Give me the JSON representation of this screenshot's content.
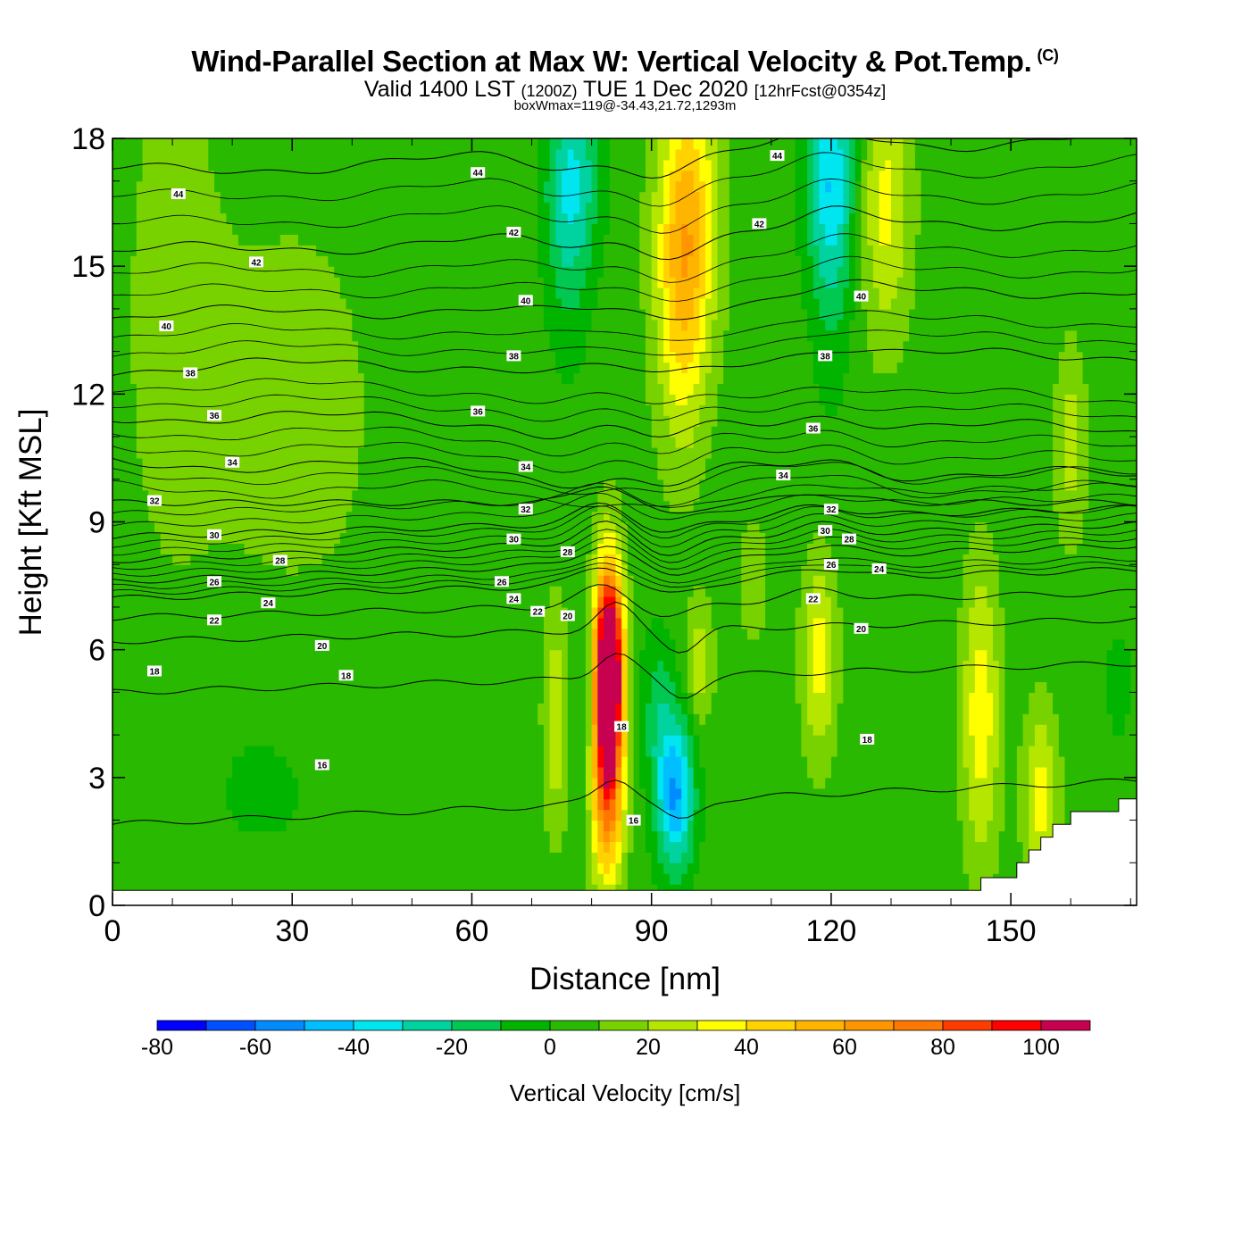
{
  "chart_data": {
    "type": "heatmap",
    "title": "Wind-Parallel Section at Max W: Vertical Velocity & Pot.Temp.",
    "copyright_mark": "(C)",
    "valid_prefix": "Valid 1400 LST",
    "valid_utc": "(1200Z)",
    "valid_date": "TUE 1 Dec 2020",
    "forecast": "[12hrFcst@0354z]",
    "box_info": "boxWmax=119@-34.43,21.72,1293m",
    "xlabel": "Distance [nm]",
    "ylabel": "Height [Kft MSL]",
    "xlim": [
      0,
      171
    ],
    "ylim": [
      0,
      18
    ],
    "x_ticks": [
      "0",
      "30",
      "60",
      "90",
      "120",
      "150"
    ],
    "x_tick_values": [
      0,
      30,
      60,
      90,
      120,
      150
    ],
    "y_ticks": [
      "0",
      "3",
      "6",
      "9",
      "12",
      "15",
      "18"
    ],
    "y_tick_values": [
      0,
      3,
      6,
      9,
      12,
      15,
      18
    ],
    "background_w": 5,
    "w_features": [
      {
        "x": 83,
        "y": 5.6,
        "sx": 1.6,
        "sy": 1.6,
        "w": 110
      },
      {
        "x": 82.5,
        "y": 4.0,
        "sx": 1.8,
        "sy": 2.4,
        "w": 60
      },
      {
        "x": 83,
        "y": 2.4,
        "sx": 2.0,
        "sy": 1.2,
        "w": 20
      },
      {
        "x": 94,
        "y": 2.6,
        "sx": 2.2,
        "sy": 1.3,
        "w": -55
      },
      {
        "x": 91,
        "y": 4.6,
        "sx": 2.0,
        "sy": 1.4,
        "w": -18
      },
      {
        "x": 79,
        "y": 5.0,
        "sx": 1.0,
        "sy": 1.4,
        "w": -12
      },
      {
        "x": 74,
        "y": 4.4,
        "sx": 1.4,
        "sy": 1.8,
        "w": 25
      },
      {
        "x": 96,
        "y": 16.2,
        "sx": 3.5,
        "sy": 2.2,
        "w": 45
      },
      {
        "x": 95,
        "y": 13.2,
        "sx": 3.0,
        "sy": 2.2,
        "w": 25
      },
      {
        "x": 77,
        "y": 17.2,
        "sx": 3.2,
        "sy": 1.5,
        "w": -32
      },
      {
        "x": 76,
        "y": 15.0,
        "sx": 2.6,
        "sy": 1.8,
        "w": -15
      },
      {
        "x": 120,
        "y": 17.2,
        "sx": 3.0,
        "sy": 1.8,
        "w": -40
      },
      {
        "x": 120,
        "y": 14.5,
        "sx": 2.4,
        "sy": 2.2,
        "w": -12
      },
      {
        "x": 129,
        "y": 16.5,
        "sx": 3.0,
        "sy": 2.2,
        "w": 28
      },
      {
        "x": 118,
        "y": 5.8,
        "sx": 2.0,
        "sy": 1.6,
        "w": 30
      },
      {
        "x": 145,
        "y": 4.5,
        "sx": 2.2,
        "sy": 2.4,
        "w": 32
      },
      {
        "x": 155,
        "y": 2.6,
        "sx": 2.0,
        "sy": 1.4,
        "w": 30
      },
      {
        "x": 160,
        "y": 10.8,
        "sx": 1.8,
        "sy": 1.6,
        "w": 20
      },
      {
        "x": 98,
        "y": 5.7,
        "sx": 1.6,
        "sy": 1.0,
        "w": 22
      },
      {
        "x": 107,
        "y": 7.6,
        "sx": 1.8,
        "sy": 1.0,
        "w": 12
      },
      {
        "x": 168,
        "y": 5.2,
        "sx": 1.6,
        "sy": 1.0,
        "w": -10
      },
      {
        "x": 25,
        "y": 3.0,
        "sx": 14,
        "sy": 2.5,
        "w": -6
      },
      {
        "x": 30,
        "y": 11.5,
        "sx": 10,
        "sy": 3.5,
        "w": 10
      },
      {
        "x": 10,
        "y": 14,
        "sx": 6,
        "sy": 5,
        "w": 9
      }
    ],
    "theta_levels": [
      16,
      18,
      20,
      22,
      24,
      26,
      28,
      30,
      32,
      34,
      36,
      38,
      40,
      42,
      44
    ],
    "theta_labels": [
      {
        "text": "44",
        "x": 11,
        "y": 16.7
      },
      {
        "text": "44",
        "x": 61,
        "y": 17.2
      },
      {
        "text": "44",
        "x": 111,
        "y": 17.6
      },
      {
        "text": "42",
        "x": 24,
        "y": 15.1
      },
      {
        "text": "42",
        "x": 67,
        "y": 15.8
      },
      {
        "text": "42",
        "x": 108,
        "y": 16.0
      },
      {
        "text": "40",
        "x": 9,
        "y": 13.6
      },
      {
        "text": "40",
        "x": 69,
        "y": 14.2
      },
      {
        "text": "40",
        "x": 125,
        "y": 14.3
      },
      {
        "text": "38",
        "x": 13,
        "y": 12.5
      },
      {
        "text": "38",
        "x": 67,
        "y": 12.9
      },
      {
        "text": "38",
        "x": 119,
        "y": 12.9
      },
      {
        "text": "36",
        "x": 17,
        "y": 11.5
      },
      {
        "text": "36",
        "x": 61,
        "y": 11.6
      },
      {
        "text": "36",
        "x": 117,
        "y": 11.2
      },
      {
        "text": "34",
        "x": 20,
        "y": 10.4
      },
      {
        "text": "34",
        "x": 69,
        "y": 10.3
      },
      {
        "text": "34",
        "x": 112,
        "y": 10.1
      },
      {
        "text": "32",
        "x": 7,
        "y": 9.5
      },
      {
        "text": "32",
        "x": 69,
        "y": 9.3
      },
      {
        "text": "32",
        "x": 120,
        "y": 9.3
      },
      {
        "text": "30",
        "x": 17,
        "y": 8.7
      },
      {
        "text": "30",
        "x": 67,
        "y": 8.6
      },
      {
        "text": "30",
        "x": 119,
        "y": 8.8
      },
      {
        "text": "28",
        "x": 28,
        "y": 8.1
      },
      {
        "text": "28",
        "x": 76,
        "y": 8.3
      },
      {
        "text": "28",
        "x": 123,
        "y": 8.6
      },
      {
        "text": "26",
        "x": 17,
        "y": 7.6
      },
      {
        "text": "26",
        "x": 65,
        "y": 7.6
      },
      {
        "text": "26",
        "x": 120,
        "y": 8.0
      },
      {
        "text": "24",
        "x": 26,
        "y": 7.1
      },
      {
        "text": "24",
        "x": 67,
        "y": 7.2
      },
      {
        "text": "24",
        "x": 128,
        "y": 7.9
      },
      {
        "text": "22",
        "x": 17,
        "y": 6.7
      },
      {
        "text": "22",
        "x": 71,
        "y": 6.9
      },
      {
        "text": "22",
        "x": 117,
        "y": 7.2
      },
      {
        "text": "20",
        "x": 35,
        "y": 6.1
      },
      {
        "text": "20",
        "x": 76,
        "y": 6.8
      },
      {
        "text": "20",
        "x": 125,
        "y": 6.5
      },
      {
        "text": "18",
        "x": 7,
        "y": 5.5
      },
      {
        "text": "18",
        "x": 39,
        "y": 5.4
      },
      {
        "text": "18",
        "x": 85,
        "y": 4.2
      },
      {
        "text": "18",
        "x": 126,
        "y": 3.9
      },
      {
        "text": "16",
        "x": 35,
        "y": 3.3
      },
      {
        "text": "16",
        "x": 87,
        "y": 2.0
      }
    ],
    "terrain": [
      [
        0,
        0.35
      ],
      [
        145,
        0.35
      ],
      [
        145,
        0.65
      ],
      [
        151,
        0.65
      ],
      [
        151,
        1.0
      ],
      [
        153,
        1.0
      ],
      [
        153,
        1.3
      ],
      [
        155,
        1.3
      ],
      [
        155,
        1.6
      ],
      [
        157,
        1.6
      ],
      [
        157,
        1.9
      ],
      [
        160,
        1.9
      ],
      [
        160,
        2.2
      ],
      [
        168,
        2.2
      ],
      [
        168,
        2.5
      ],
      [
        171,
        2.5
      ]
    ],
    "colorbar": {
      "label": "Vertical Velocity [cm/s]",
      "bounds": [
        -80,
        -70,
        -60,
        -50,
        -40,
        -30,
        -20,
        -10,
        0,
        10,
        20,
        30,
        40,
        50,
        60,
        70,
        80,
        90,
        100,
        110
      ],
      "colors": [
        "#0000ff",
        "#0050ff",
        "#008cff",
        "#00beff",
        "#00e6f0",
        "#00d2a0",
        "#00c850",
        "#00b400",
        "#28b900",
        "#78d200",
        "#b4e600",
        "#ffff00",
        "#ffd200",
        "#ffb400",
        "#ff9600",
        "#ff7800",
        "#ff3c00",
        "#ff0000",
        "#c80050"
      ],
      "tick_labels": [
        "-80",
        "-60",
        "-40",
        "-20",
        "0",
        "20",
        "40",
        "60",
        "80",
        "100"
      ],
      "tick_values": [
        -80,
        -60,
        -40,
        -20,
        0,
        20,
        40,
        60,
        80,
        100
      ]
    }
  }
}
